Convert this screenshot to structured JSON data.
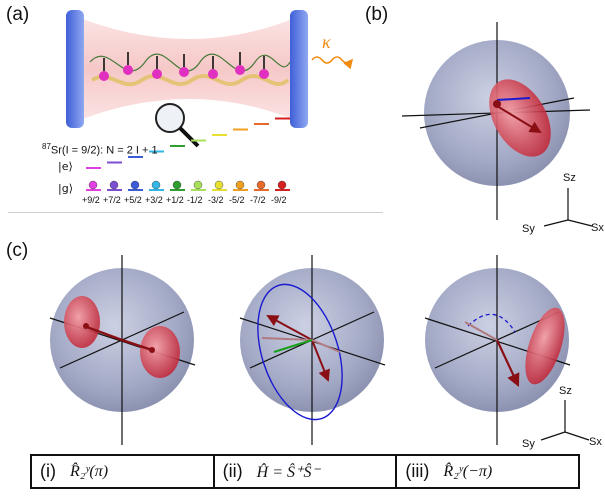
{
  "panels": {
    "a": "(a)",
    "b": "(b)",
    "c": "(c)"
  },
  "cavity": {
    "kappa": "κ",
    "isotope_line": "87Sr(I = 9/2):  N = 2 I + 1",
    "isotope_sup": "87",
    "isotope_rest": "Sr(I = 9/2):  N = 2 I + 1",
    "excited": "|e⟩",
    "ground": "|g⟩",
    "mf_labels": [
      "+9/2",
      "+7/2",
      "+5/2",
      "+3/2",
      "+1/2",
      "-1/2",
      "-3/2",
      "-5/2",
      "-7/2",
      "-9/2"
    ],
    "level_colors": [
      "#e040e0",
      "#7b4fd0",
      "#3b5bd8",
      "#33b5e5",
      "#2e9e2e",
      "#a8e05a",
      "#e8e030",
      "#f0a020",
      "#e86a2a",
      "#d62020"
    ]
  },
  "axes_b": {
    "sz": "Sz",
    "sy": "Sy",
    "sx": "Sx"
  },
  "axes_c": {
    "sz": "Sz",
    "sy": "Sy",
    "sx": "Sx"
  },
  "operators": [
    {
      "index": "(i)",
      "expr": "R̂₂ʸ(π)"
    },
    {
      "index": "(ii)",
      "expr": "Ĥ = Ŝ⁺Ŝ⁻"
    },
    {
      "index": "(iii)",
      "expr": "R̂₂ʸ(−π)"
    }
  ],
  "colors": {
    "sphere": "#8e97b8",
    "red": "#c8202a",
    "blue": "#1a1ad0",
    "green": "#1aa01a"
  }
}
